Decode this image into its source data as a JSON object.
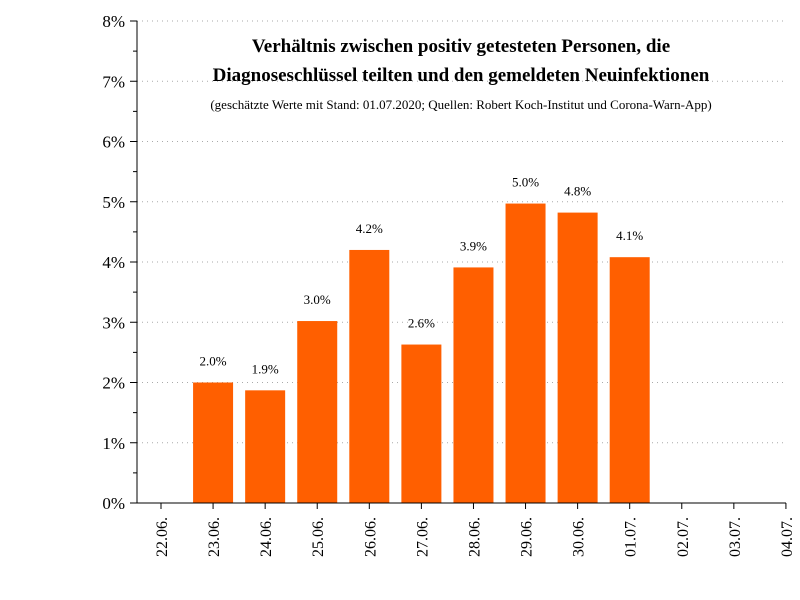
{
  "chart_data": {
    "type": "bar",
    "title_lines": [
      "Verhältnis zwischen positiv getesteten Personen, die",
      "Diagnoseschlüssel teilten und den gemeldeten Neuinfektionen"
    ],
    "subtitle": "(geschätzte Werte mit Stand: 01.07.2020; Quellen: Robert Koch-Institut und Corona-Warn-App)",
    "categories": [
      "22.06.",
      "23.06.",
      "24.06.",
      "25.06.",
      "26.06.",
      "27.06.",
      "28.06.",
      "29.06.",
      "30.06.",
      "01.07.",
      "02.07.",
      "03.07.",
      "04.07."
    ],
    "values": [
      null,
      2.0,
      1.87,
      3.02,
      4.2,
      2.63,
      3.91,
      4.97,
      4.82,
      4.08,
      null,
      null,
      null
    ],
    "value_labels": [
      "",
      "2.0%",
      "1.9%",
      "3.0%",
      "4.2%",
      "2.6%",
      "3.9%",
      "5.0%",
      "4.8%",
      "4.1%",
      "",
      "",
      ""
    ],
    "yticks": [
      "0%",
      "1%",
      "2%",
      "3%",
      "4%",
      "5%",
      "6%",
      "7%",
      "8%"
    ],
    "ylim": [
      0,
      8
    ],
    "bar_color": "#ff5f00",
    "grid": "horizontal dotted"
  }
}
